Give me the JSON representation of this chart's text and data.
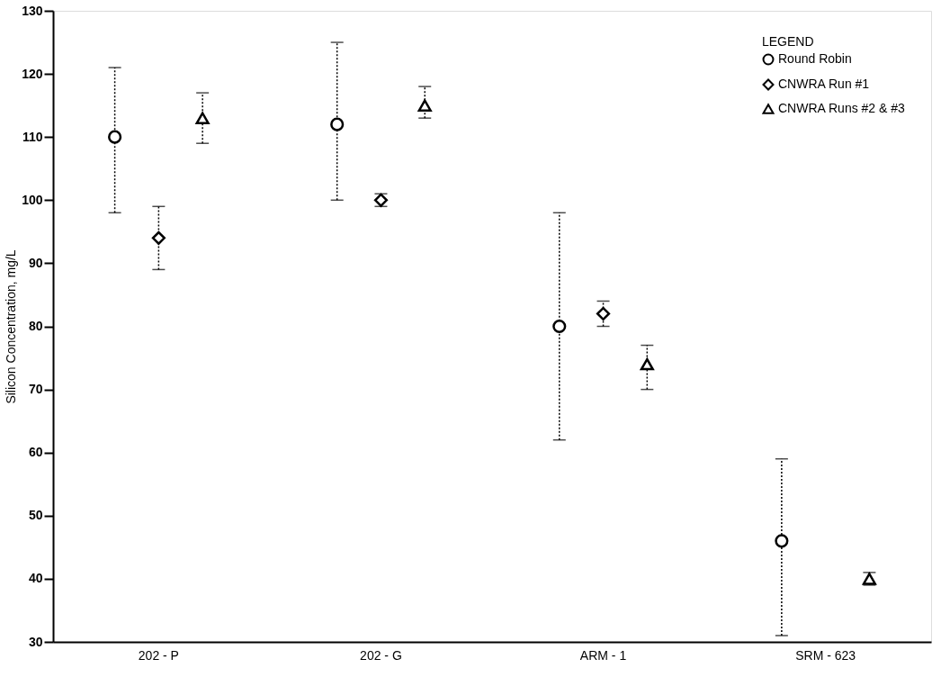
{
  "chart_data": {
    "type": "scatter",
    "ylabel": "Silicon Concentration, mg/L",
    "legend_title": "LEGEND",
    "categories": [
      "202 - P",
      "202 - G",
      "ARM - 1",
      "SRM - 623"
    ],
    "series": [
      {
        "name": "Round Robin",
        "color": "#000000",
        "marker": "circle",
        "values": [
          110,
          112,
          80,
          46
        ],
        "errors": [
          [
            98,
            121
          ],
          [
            100,
            125
          ],
          [
            62,
            98
          ],
          [
            31,
            59
          ]
        ]
      },
      {
        "name": "CNWRA Run #1",
        "color": "#000000",
        "marker": "diamond",
        "values": [
          94,
          100,
          82,
          null
        ],
        "errors": [
          [
            89,
            99
          ],
          [
            99,
            101
          ],
          [
            80,
            84
          ],
          null
        ]
      },
      {
        "name": "CNWRA Runs #2 & #3",
        "color": "#000000",
        "marker": "triangle",
        "values": [
          113,
          115,
          74,
          40
        ],
        "errors": [
          [
            109,
            117
          ],
          [
            113,
            118
          ],
          [
            70,
            77
          ],
          [
            39,
            41
          ]
        ]
      }
    ],
    "ylim": [
      30,
      130
    ],
    "yticks": [
      30,
      40,
      50,
      60,
      70,
      80,
      90,
      100,
      110,
      120,
      130
    ],
    "grid": false,
    "legend": "top right",
    "line_style": "dotted"
  }
}
